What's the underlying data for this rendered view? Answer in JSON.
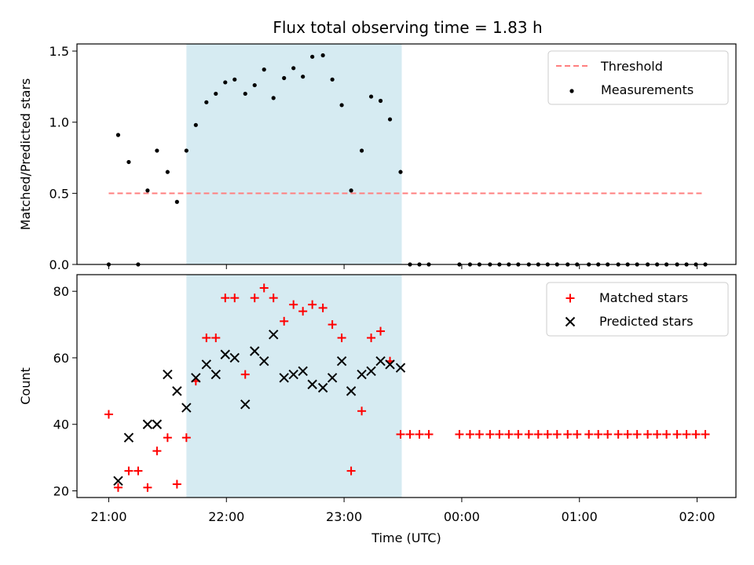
{
  "title": "Flux total observing time = 1.83 h",
  "colors": {
    "shade": "#add8e6",
    "threshold": "#ff7f7f",
    "measurements": "#000000",
    "matched": "#ff0000",
    "predicted": "#000000"
  },
  "x_tick_labels": [
    "21:00",
    "22:00",
    "23:00",
    "00:00",
    "01:00",
    "02:00"
  ],
  "chart_data": [
    {
      "type": "scatter",
      "name": "top",
      "ylabel": "Matched/Predicted stars",
      "ylim": [
        0,
        1.55
      ],
      "yticks": [
        0.0,
        0.5,
        1.0,
        1.5
      ],
      "ytick_labels": [
        "0.0",
        "0.5",
        "1.0",
        "1.5"
      ],
      "x_unit": "hours since 21:00 UTC",
      "xlim": [
        -0.27,
        5.33
      ],
      "shade_x": [
        0.66,
        2.49
      ],
      "legend_position": "upper right",
      "threshold": {
        "label": "Threshold",
        "y": 0.5,
        "x_range": [
          0.0,
          5.05
        ]
      },
      "measurements": {
        "label": "Measurements",
        "x": [
          0.0,
          0.08,
          0.17,
          0.25,
          0.33,
          0.41,
          0.5,
          0.58,
          0.66,
          0.74,
          0.83,
          0.91,
          0.99,
          1.07,
          1.16,
          1.24,
          1.32,
          1.4,
          1.49,
          1.57,
          1.65,
          1.73,
          1.82,
          1.9,
          1.98,
          2.06,
          2.15,
          2.23,
          2.31,
          2.39,
          2.48,
          2.56,
          2.64,
          2.72,
          2.98,
          3.07,
          3.15,
          3.24,
          3.32,
          3.4,
          3.48,
          3.57,
          3.65,
          3.73,
          3.81,
          3.9,
          3.98,
          4.08,
          4.16,
          4.24,
          4.33,
          4.41,
          4.49,
          4.58,
          4.66,
          4.74,
          4.83,
          4.91,
          4.99,
          5.07
        ],
        "y": [
          0.0,
          0.91,
          0.72,
          0.0,
          0.52,
          0.8,
          0.65,
          0.44,
          0.8,
          0.98,
          1.14,
          1.2,
          1.28,
          1.3,
          1.2,
          1.26,
          1.37,
          1.17,
          1.31,
          1.38,
          1.32,
          1.46,
          1.47,
          1.3,
          1.12,
          0.52,
          0.8,
          1.18,
          1.15,
          1.02,
          0.65,
          0.0,
          0.0,
          0.0,
          0.0,
          0.0,
          0.0,
          0.0,
          0.0,
          0.0,
          0.0,
          0.0,
          0.0,
          0.0,
          0.0,
          0.0,
          0.0,
          0.0,
          0.0,
          0.0,
          0.0,
          0.0,
          0.0,
          0.0,
          0.0,
          0.0,
          0.0,
          0.0,
          0.0,
          0.0
        ]
      }
    },
    {
      "type": "scatter",
      "name": "bottom",
      "ylabel": "Count",
      "xlabel": "Time (UTC)",
      "ylim": [
        18,
        85
      ],
      "yticks": [
        20,
        40,
        60,
        80
      ],
      "ytick_labels": [
        "20",
        "40",
        "60",
        "80"
      ],
      "x_unit": "hours since 21:00 UTC",
      "xlim": [
        -0.27,
        5.33
      ],
      "shade_x": [
        0.66,
        2.49
      ],
      "legend_position": "upper right",
      "matched": {
        "label": "Matched stars",
        "marker": "+",
        "x": [
          0.0,
          0.08,
          0.17,
          0.25,
          0.33,
          0.41,
          0.5,
          0.58,
          0.66,
          0.74,
          0.83,
          0.91,
          0.99,
          1.07,
          1.16,
          1.24,
          1.32,
          1.4,
          1.49,
          1.57,
          1.65,
          1.73,
          1.82,
          1.9,
          1.98,
          2.06,
          2.15,
          2.23,
          2.31,
          2.39,
          2.48,
          2.56,
          2.64,
          2.72,
          2.98,
          3.07,
          3.15,
          3.24,
          3.32,
          3.4,
          3.48,
          3.57,
          3.65,
          3.73,
          3.81,
          3.9,
          3.98,
          4.08,
          4.16,
          4.24,
          4.33,
          4.41,
          4.49,
          4.58,
          4.66,
          4.74,
          4.83,
          4.91,
          4.99,
          5.07
        ],
        "y": [
          43,
          21,
          26,
          26,
          21,
          32,
          36,
          22,
          36,
          53,
          66,
          66,
          78,
          78,
          55,
          78,
          81,
          78,
          71,
          76,
          74,
          76,
          75,
          70,
          66,
          26,
          44,
          66,
          68,
          59,
          37,
          37,
          37,
          37,
          37,
          37,
          37,
          37,
          37,
          37,
          37,
          37,
          37,
          37,
          37,
          37,
          37,
          37,
          37,
          37,
          37,
          37,
          37,
          37,
          37,
          37,
          37,
          37,
          37,
          37
        ]
      },
      "predicted": {
        "label": "Predicted stars",
        "marker": "x",
        "x": [
          0.08,
          0.17,
          0.33,
          0.41,
          0.5,
          0.58,
          0.66,
          0.74,
          0.83,
          0.91,
          0.99,
          1.07,
          1.16,
          1.24,
          1.32,
          1.4,
          1.49,
          1.57,
          1.65,
          1.73,
          1.82,
          1.9,
          1.98,
          2.06,
          2.15,
          2.23,
          2.31,
          2.39,
          2.48
        ],
        "y": [
          23,
          36,
          40,
          40,
          55,
          50,
          45,
          54,
          58,
          55,
          61,
          60,
          46,
          62,
          59,
          67,
          54,
          55,
          56,
          52,
          51,
          54,
          59,
          50,
          55,
          56,
          59,
          58,
          57
        ]
      }
    }
  ]
}
